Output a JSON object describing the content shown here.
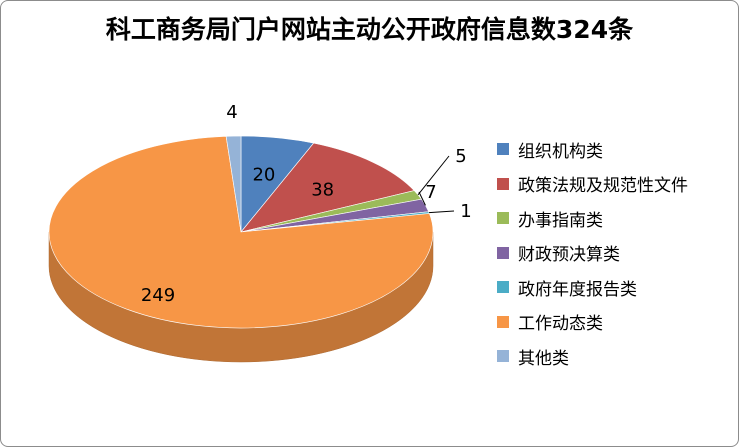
{
  "chart_data": {
    "type": "pie",
    "title": "科工商务局门户网站主动公开政府信息数324条",
    "categories": [
      "组织机构类",
      "政策法规及规范性文件",
      "办事指南类",
      "财政预决算类",
      "政府年度报告类",
      "工作动态类",
      "其他类"
    ],
    "values": [
      20,
      38,
      5,
      7,
      1,
      249,
      4
    ],
    "data_labels": [
      "20",
      "38",
      "5",
      "7",
      "1",
      "249",
      "4"
    ],
    "colors": [
      "#4f81bd",
      "#c0504d",
      "#9bbb59",
      "#8064a2",
      "#4bacc6",
      "#f79646",
      "#95b3d7"
    ],
    "style": "3d",
    "legend_position": "right"
  }
}
